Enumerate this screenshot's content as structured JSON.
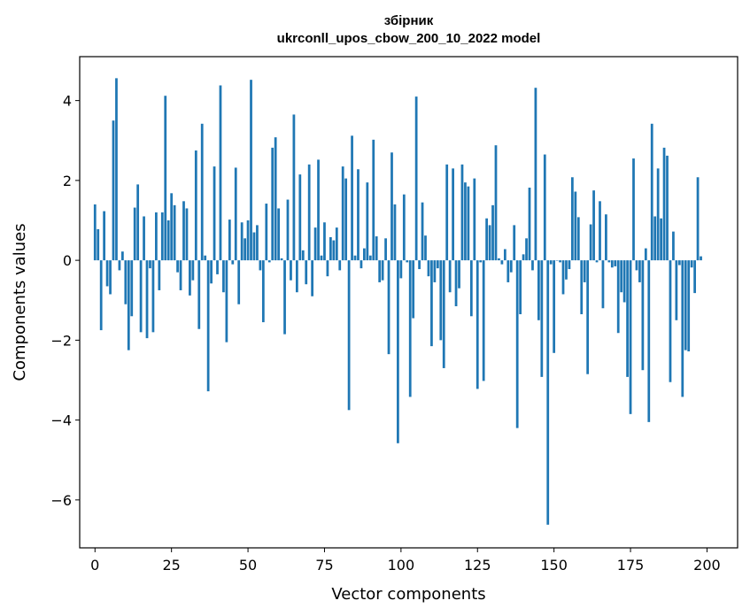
{
  "chart_data": {
    "type": "bar",
    "title": "збірник\nukrconll_upos_cbow_200_10_2022 model",
    "xlabel": "Vector components",
    "ylabel": "Components values",
    "xlim": [
      -5,
      210
    ],
    "ylim": [
      -7.2,
      5.1
    ],
    "xticks": [
      0,
      25,
      50,
      75,
      100,
      125,
      150,
      175,
      200
    ],
    "yticks": [
      -6,
      -4,
      -2,
      0,
      2,
      4
    ],
    "color": "#1f77b4",
    "values": [
      1.4,
      0.78,
      -1.75,
      1.23,
      -0.65,
      -0.85,
      3.5,
      4.56,
      -0.25,
      0.22,
      -1.1,
      -2.25,
      -1.4,
      1.32,
      1.9,
      -1.8,
      1.1,
      -1.95,
      -0.2,
      -1.8,
      1.2,
      -0.75,
      1.2,
      4.12,
      1.0,
      1.68,
      1.38,
      -0.3,
      -0.75,
      1.48,
      1.3,
      -0.88,
      -0.5,
      2.75,
      -1.72,
      3.42,
      0.12,
      -3.28,
      -0.58,
      2.35,
      -0.35,
      4.38,
      -0.8,
      -2.05,
      1.02,
      -0.1,
      2.32,
      -1.1,
      0.95,
      0.55,
      1.0,
      4.52,
      0.7,
      0.88,
      -0.25,
      -1.55,
      1.42,
      -0.05,
      2.82,
      3.08,
      1.3,
      0.05,
      -1.85,
      1.52,
      -0.5,
      3.65,
      -0.8,
      2.15,
      0.25,
      -0.6,
      2.4,
      -0.9,
      0.82,
      2.52,
      0.12,
      0.95,
      -0.4,
      0.58,
      0.5,
      0.82,
      -0.25,
      2.35,
      2.05,
      -3.75,
      3.12,
      0.12,
      2.28,
      -0.2,
      0.3,
      1.95,
      0.12,
      3.02,
      0.6,
      -0.55,
      -0.5,
      0.55,
      -2.35,
      2.7,
      1.4,
      -4.58,
      -0.45,
      1.65,
      -0.05,
      -3.42,
      -1.45,
      4.1,
      -0.22,
      1.45,
      0.62,
      -0.4,
      -2.15,
      -0.55,
      -0.2,
      -2.0,
      -2.7,
      2.4,
      -0.8,
      2.3,
      -1.15,
      -0.7,
      2.4,
      1.95,
      1.85,
      -1.4,
      2.05,
      -3.22,
      -0.05,
      -3.02,
      1.05,
      0.88,
      1.38,
      2.88,
      0.05,
      -0.1,
      0.28,
      -0.55,
      -0.3,
      0.88,
      -4.2,
      -1.35,
      0.15,
      0.55,
      1.82,
      -0.25,
      4.32,
      -1.5,
      -2.92,
      2.65,
      -6.62,
      -0.1,
      -2.32,
      0.0,
      -0.05,
      -0.85,
      -0.48,
      -0.22,
      2.08,
      1.72,
      1.08,
      -1.35,
      -0.55,
      -2.85,
      0.9,
      1.75,
      -0.05,
      1.48,
      -1.2,
      1.15,
      -0.05,
      -0.18,
      -0.15,
      -1.82,
      -0.8,
      -1.05,
      -2.92,
      -3.85,
      2.55,
      -0.25,
      -0.55,
      -2.75,
      0.3,
      -4.05,
      3.42,
      1.1,
      2.3,
      1.05,
      2.82,
      2.62,
      -3.05,
      0.72,
      -1.5,
      -0.12,
      -3.42,
      -2.25,
      -2.28,
      -0.18,
      -0.82,
      2.08,
      0.1
    ]
  }
}
